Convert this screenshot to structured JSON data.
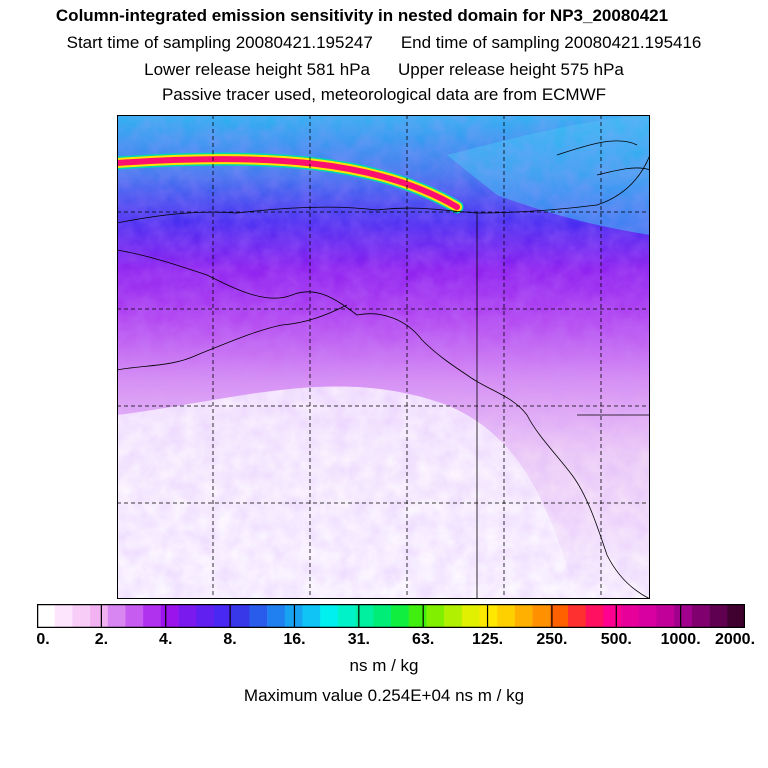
{
  "header": {
    "title": "Column-integrated emission sensitivity in nested domain for NP3_20080421",
    "start_label": "Start time of sampling 20080421.195247",
    "end_label": "End time of sampling 20080421.195416",
    "lower_label": "Lower release height  581 hPa",
    "upper_label": "Upper release height  575 hPa",
    "tracer_note": "Passive tracer used, meteorological data are from ECMWF"
  },
  "colorbar": {
    "tick_labels": [
      "0.",
      "2.",
      "4.",
      "8.",
      "16.",
      "31.",
      "63.",
      "125.",
      "250.",
      "500.",
      "1000.",
      "2000."
    ],
    "colors": [
      "#ffffff",
      "#fde6fd",
      "#f7ccf7",
      "#f2b2f2",
      "#d886f2",
      "#c65cf0",
      "#b032ee",
      "#9b14ec",
      "#7a1aee",
      "#6020f0",
      "#4828f2",
      "#3838e8",
      "#2a5cec",
      "#2080ef",
      "#18a2f2",
      "#10c4f5",
      "#00f0f0",
      "#00f2c8",
      "#00f0a0",
      "#00ee78",
      "#10ee40",
      "#40ee10",
      "#80f000",
      "#b0f000",
      "#e0f000",
      "#ffe800",
      "#ffd000",
      "#ffb000",
      "#ff9000",
      "#ff6000",
      "#ff3030",
      "#ff1060",
      "#ff0090",
      "#e8009a",
      "#d800a0",
      "#c00098",
      "#a0008c",
      "#800070",
      "#600050",
      "#400030"
    ],
    "units": "ns m / kg"
  },
  "footer": {
    "max_value": "Maximum value  0.254E+04 ns m / kg"
  },
  "map": {
    "grid": "dashed",
    "track_colors": [
      "#ff1070",
      "#ffe800",
      "#00e0c0"
    ]
  }
}
